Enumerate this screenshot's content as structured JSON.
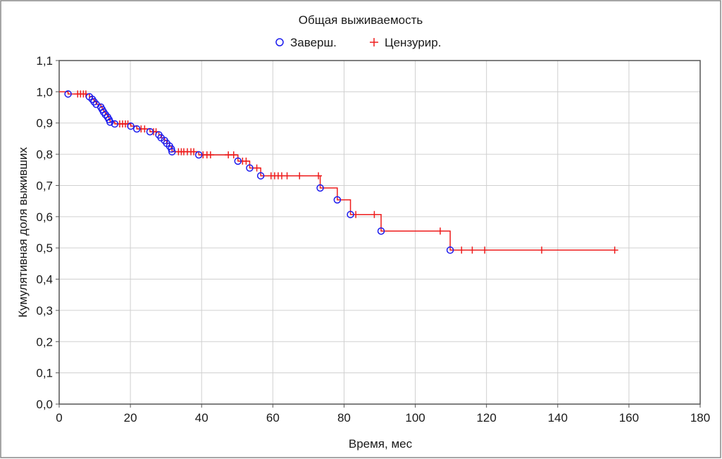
{
  "chart_data": {
    "type": "line",
    "title": "Общая выживаемость",
    "xlabel": "Время, мес",
    "ylabel": "Кумулятивная доля выживших",
    "xlim": [
      0,
      180
    ],
    "ylim": [
      0,
      1.1
    ],
    "x_ticks": [
      0,
      20,
      40,
      60,
      80,
      100,
      120,
      140,
      160,
      180
    ],
    "x_tick_labels": [
      "0",
      "20",
      "40",
      "60",
      "80",
      "100",
      "120",
      "140",
      "160",
      "180"
    ],
    "y_ticks": [
      0,
      0.1,
      0.2,
      0.3,
      0.4,
      0.5,
      0.6,
      0.7,
      0.8,
      0.9,
      1.0,
      1.1
    ],
    "y_tick_labels": [
      "0,0",
      "0,1",
      "0,2",
      "0,3",
      "0,4",
      "0,5",
      "0,6",
      "0,7",
      "0,8",
      "0,9",
      "1,0",
      "1,1"
    ],
    "grid": true,
    "legend_position": "top-center",
    "colors": {
      "curve": "#ee1c1c",
      "completed": "#1c1cee",
      "censored": "#ee1c1c",
      "grid": "#d0d0d0",
      "frame": "#555555"
    },
    "series": [
      {
        "name": "Заверш.",
        "marker": "circle",
        "points": [
          [
            2.5,
            0.993
          ],
          [
            8.5,
            0.984
          ],
          [
            9.3,
            0.976
          ],
          [
            9.8,
            0.968
          ],
          [
            10.4,
            0.96
          ],
          [
            11.7,
            0.951
          ],
          [
            12.1,
            0.943
          ],
          [
            12.5,
            0.935
          ],
          [
            13.0,
            0.927
          ],
          [
            13.6,
            0.919
          ],
          [
            14.0,
            0.911
          ],
          [
            14.3,
            0.903
          ],
          [
            15.6,
            0.897
          ],
          [
            20.1,
            0.89
          ],
          [
            21.8,
            0.881
          ],
          [
            25.5,
            0.872
          ],
          [
            28.0,
            0.862
          ],
          [
            28.6,
            0.853
          ],
          [
            29.6,
            0.844
          ],
          [
            30.2,
            0.835
          ],
          [
            31.0,
            0.826
          ],
          [
            31.5,
            0.817
          ],
          [
            31.7,
            0.808
          ],
          [
            39.2,
            0.798
          ],
          [
            50.2,
            0.778
          ],
          [
            53.5,
            0.756
          ],
          [
            56.6,
            0.731
          ],
          [
            73.3,
            0.692
          ],
          [
            78.1,
            0.654
          ],
          [
            81.8,
            0.607
          ],
          [
            90.4,
            0.554
          ],
          [
            109.8,
            0.493
          ]
        ]
      },
      {
        "name": "Цензурир.",
        "marker": "plus",
        "points": [
          [
            5.2,
            0.993
          ],
          [
            6.0,
            0.993
          ],
          [
            6.8,
            0.993
          ],
          [
            7.5,
            0.993
          ],
          [
            17.0,
            0.897
          ],
          [
            17.8,
            0.897
          ],
          [
            18.6,
            0.897
          ],
          [
            19.3,
            0.897
          ],
          [
            23.0,
            0.881
          ],
          [
            24.0,
            0.881
          ],
          [
            26.5,
            0.872
          ],
          [
            27.2,
            0.872
          ],
          [
            33.5,
            0.808
          ],
          [
            34.3,
            0.808
          ],
          [
            35.0,
            0.808
          ],
          [
            36.0,
            0.808
          ],
          [
            37.0,
            0.808
          ],
          [
            37.8,
            0.808
          ],
          [
            40.4,
            0.798
          ],
          [
            41.5,
            0.798
          ],
          [
            42.5,
            0.798
          ],
          [
            47.5,
            0.798
          ],
          [
            49.0,
            0.798
          ],
          [
            51.5,
            0.778
          ],
          [
            52.5,
            0.778
          ],
          [
            55.5,
            0.756
          ],
          [
            59.5,
            0.731
          ],
          [
            60.5,
            0.731
          ],
          [
            61.5,
            0.731
          ],
          [
            62.5,
            0.731
          ],
          [
            64.0,
            0.731
          ],
          [
            67.5,
            0.731
          ],
          [
            72.8,
            0.731
          ],
          [
            83.3,
            0.607
          ],
          [
            88.5,
            0.607
          ],
          [
            107.0,
            0.554
          ],
          [
            113.0,
            0.493
          ],
          [
            116.0,
            0.493
          ],
          [
            119.5,
            0.493
          ],
          [
            135.5,
            0.493
          ],
          [
            156.0,
            0.493
          ]
        ]
      }
    ]
  }
}
